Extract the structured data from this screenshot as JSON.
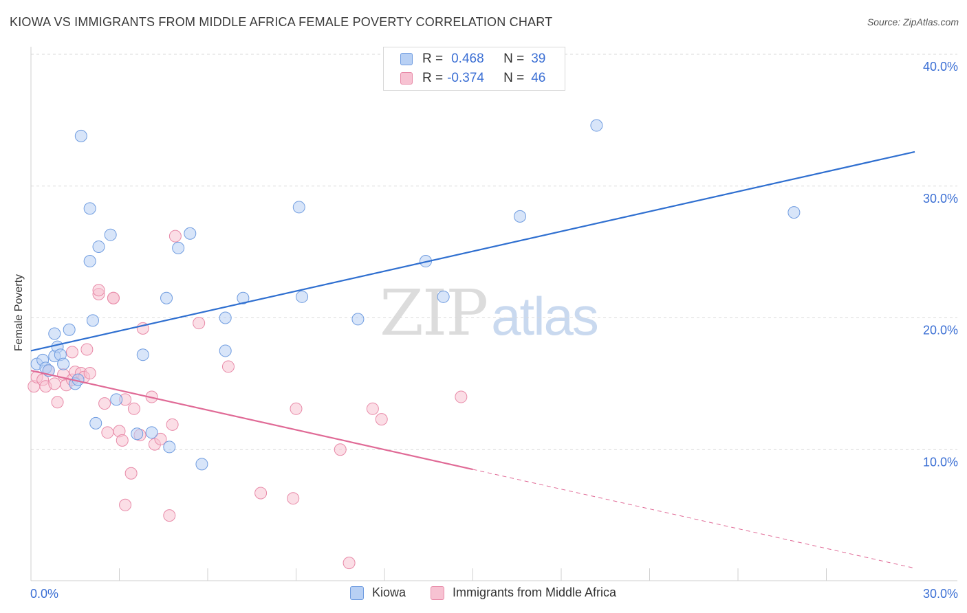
{
  "header": {
    "title": "KIOWA VS IMMIGRANTS FROM MIDDLE AFRICA FEMALE POVERTY CORRELATION CHART",
    "source": "Source: ZipAtlas.com"
  },
  "watermark": {
    "zip": "ZIP",
    "atlas": "atlas"
  },
  "legend": {
    "kiowa": {
      "r_label": "R =",
      "r_value": "0.468",
      "n_label": "N =",
      "n_value": "39"
    },
    "africa": {
      "r_label": "R =",
      "r_value": "-0.374",
      "n_label": "N =",
      "n_value": "46"
    }
  },
  "bottom_legend": {
    "kiowa": "Kiowa",
    "africa": "Immigrants from Middle Africa"
  },
  "colors": {
    "kiowa_fill": "#b8d0f4",
    "kiowa_stroke": "#6f9ce0",
    "kiowa_line": "#2f6fd0",
    "africa_fill": "#f7c2d2",
    "africa_stroke": "#e88aa8",
    "africa_line": "#e06a96",
    "tick_label": "#3b6fd4",
    "grid": "#d9d9d9"
  },
  "chart_data": {
    "type": "scatter",
    "title": "KIOWA VS IMMIGRANTS FROM MIDDLE AFRICA FEMALE POVERTY CORRELATION CHART",
    "xlabel": "",
    "ylabel": "Female Poverty",
    "xlim": [
      0,
      30
    ],
    "ylim": [
      0,
      41
    ],
    "x_tick_labels": [
      {
        "value": 0,
        "label": "0.0%"
      },
      {
        "value": 30,
        "label": "30.0%"
      }
    ],
    "y_tick_labels": [
      {
        "value": 10,
        "label": "10.0%"
      },
      {
        "value": 20,
        "label": "20.0%"
      },
      {
        "value": 30,
        "label": "30.0%"
      },
      {
        "value": 40,
        "label": "40.0%"
      }
    ],
    "x_minor_ticks": [
      3,
      6,
      9,
      12,
      15,
      18,
      21,
      24,
      27
    ],
    "series": [
      {
        "name": "Kiowa",
        "r": 0.468,
        "n": 39,
        "points": [
          [
            0.2,
            16.5
          ],
          [
            0.4,
            16.8
          ],
          [
            0.5,
            16.2
          ],
          [
            0.6,
            16.0
          ],
          [
            0.8,
            17.1
          ],
          [
            0.8,
            18.8
          ],
          [
            0.9,
            17.8
          ],
          [
            1.0,
            17.2
          ],
          [
            1.1,
            16.5
          ],
          [
            1.3,
            19.1
          ],
          [
            1.5,
            15.0
          ],
          [
            1.6,
            15.3
          ],
          [
            1.7,
            33.8
          ],
          [
            2.0,
            28.3
          ],
          [
            2.0,
            24.3
          ],
          [
            2.1,
            19.8
          ],
          [
            2.2,
            12.0
          ],
          [
            2.3,
            25.4
          ],
          [
            2.7,
            26.3
          ],
          [
            2.9,
            13.8
          ],
          [
            3.6,
            11.2
          ],
          [
            3.8,
            17.2
          ],
          [
            4.1,
            11.3
          ],
          [
            4.6,
            21.5
          ],
          [
            4.7,
            10.2
          ],
          [
            5.0,
            25.3
          ],
          [
            5.4,
            26.4
          ],
          [
            5.8,
            8.9
          ],
          [
            6.6,
            17.5
          ],
          [
            6.6,
            20.0
          ],
          [
            7.2,
            21.5
          ],
          [
            9.1,
            28.4
          ],
          [
            9.2,
            21.6
          ],
          [
            11.1,
            19.9
          ],
          [
            13.4,
            24.3
          ],
          [
            14.0,
            21.6
          ],
          [
            16.6,
            27.7
          ],
          [
            19.2,
            34.6
          ],
          [
            25.9,
            28.0
          ]
        ],
        "trend": {
          "x0": 0,
          "y0": 17.5,
          "x1": 30,
          "y1": 32.6
        }
      },
      {
        "name": "Immigrants from Middle Africa",
        "r": -0.374,
        "n": 46,
        "points": [
          [
            0.1,
            14.8
          ],
          [
            0.2,
            15.5
          ],
          [
            0.4,
            15.3
          ],
          [
            0.5,
            14.8
          ],
          [
            0.6,
            16.0
          ],
          [
            0.8,
            15.0
          ],
          [
            0.9,
            13.6
          ],
          [
            1.1,
            15.7
          ],
          [
            1.2,
            14.9
          ],
          [
            1.4,
            15.3
          ],
          [
            1.4,
            17.4
          ],
          [
            1.5,
            15.9
          ],
          [
            1.7,
            15.8
          ],
          [
            1.8,
            15.5
          ],
          [
            1.9,
            17.6
          ],
          [
            2.0,
            15.8
          ],
          [
            2.3,
            21.8
          ],
          [
            2.3,
            22.1
          ],
          [
            2.5,
            13.5
          ],
          [
            2.6,
            11.3
          ],
          [
            2.8,
            21.5
          ],
          [
            2.8,
            21.5
          ],
          [
            3.0,
            11.4
          ],
          [
            3.1,
            10.7
          ],
          [
            3.2,
            5.8
          ],
          [
            3.2,
            13.8
          ],
          [
            3.4,
            8.2
          ],
          [
            3.5,
            13.1
          ],
          [
            3.7,
            11.1
          ],
          [
            3.8,
            19.2
          ],
          [
            4.1,
            14.0
          ],
          [
            4.2,
            10.4
          ],
          [
            4.4,
            10.8
          ],
          [
            4.7,
            5.0
          ],
          [
            4.8,
            11.9
          ],
          [
            4.9,
            26.2
          ],
          [
            5.7,
            19.6
          ],
          [
            6.7,
            16.3
          ],
          [
            7.8,
            6.7
          ],
          [
            8.9,
            6.3
          ],
          [
            9.0,
            13.1
          ],
          [
            10.5,
            10.0
          ],
          [
            10.8,
            1.4
          ],
          [
            11.6,
            13.1
          ],
          [
            11.9,
            12.3
          ],
          [
            14.6,
            14.0
          ]
        ],
        "trend": {
          "x0": 0,
          "y0": 16.0,
          "x1": 15.0,
          "y1": 8.5
        },
        "trend_dashed": {
          "x0": 15.0,
          "y0": 8.5,
          "x1": 30,
          "y1": 1.0
        }
      }
    ]
  }
}
